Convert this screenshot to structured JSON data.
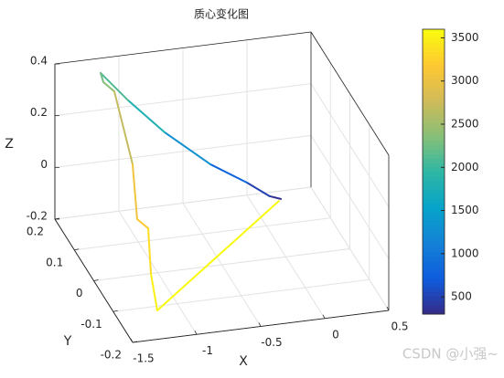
{
  "chart_data": {
    "type": "line3d",
    "title": "质心变化图",
    "xlabel": "X",
    "ylabel": "Y",
    "zlabel": "Z",
    "xlim": [
      -1.5,
      0.5
    ],
    "ylim": [
      -0.2,
      0.2
    ],
    "zlim": [
      -0.2,
      0.4
    ],
    "xticks": [
      -1.5,
      -1,
      -0.5,
      0,
      0.5
    ],
    "yticks": [
      -0.2,
      -0.1,
      0,
      0.1,
      0.2
    ],
    "zticks": [
      -0.2,
      0,
      0.2,
      0.4
    ],
    "grid": true,
    "x": [
      -0.039,
      -0.095,
      -0.243,
      -0.483,
      -0.779,
      -1.004,
      -1.143,
      -1.121,
      -1.051,
      -0.969,
      -0.979,
      -0.923,
      -1.084,
      -1.186,
      -0.054
    ],
    "y": [
      0.0,
      0.02,
      0.04,
      0.07,
      0.11,
      0.15,
      0.2,
      0.2,
      0.19,
      0.15,
      0.12,
      0.1,
      -0.02,
      -0.12,
      0.0
    ],
    "z": [
      0.026,
      0.016,
      0.054,
      0.104,
      0.198,
      0.288,
      0.343,
      0.306,
      0.278,
      0.039,
      -0.137,
      -0.152,
      -0.175,
      -0.191,
      0.019
    ],
    "t": [
      300,
      400,
      600,
      1000,
      1600,
      2000,
      2200,
      2300,
      2450,
      2950,
      3150,
      3250,
      3450,
      3580,
      3600
    ],
    "colormap": "parula",
    "clim": [
      300,
      3600
    ],
    "cticks": [
      500,
      1000,
      1500,
      2000,
      2500,
      3000,
      3500
    ],
    "watermark": "CSDN @小强~"
  }
}
